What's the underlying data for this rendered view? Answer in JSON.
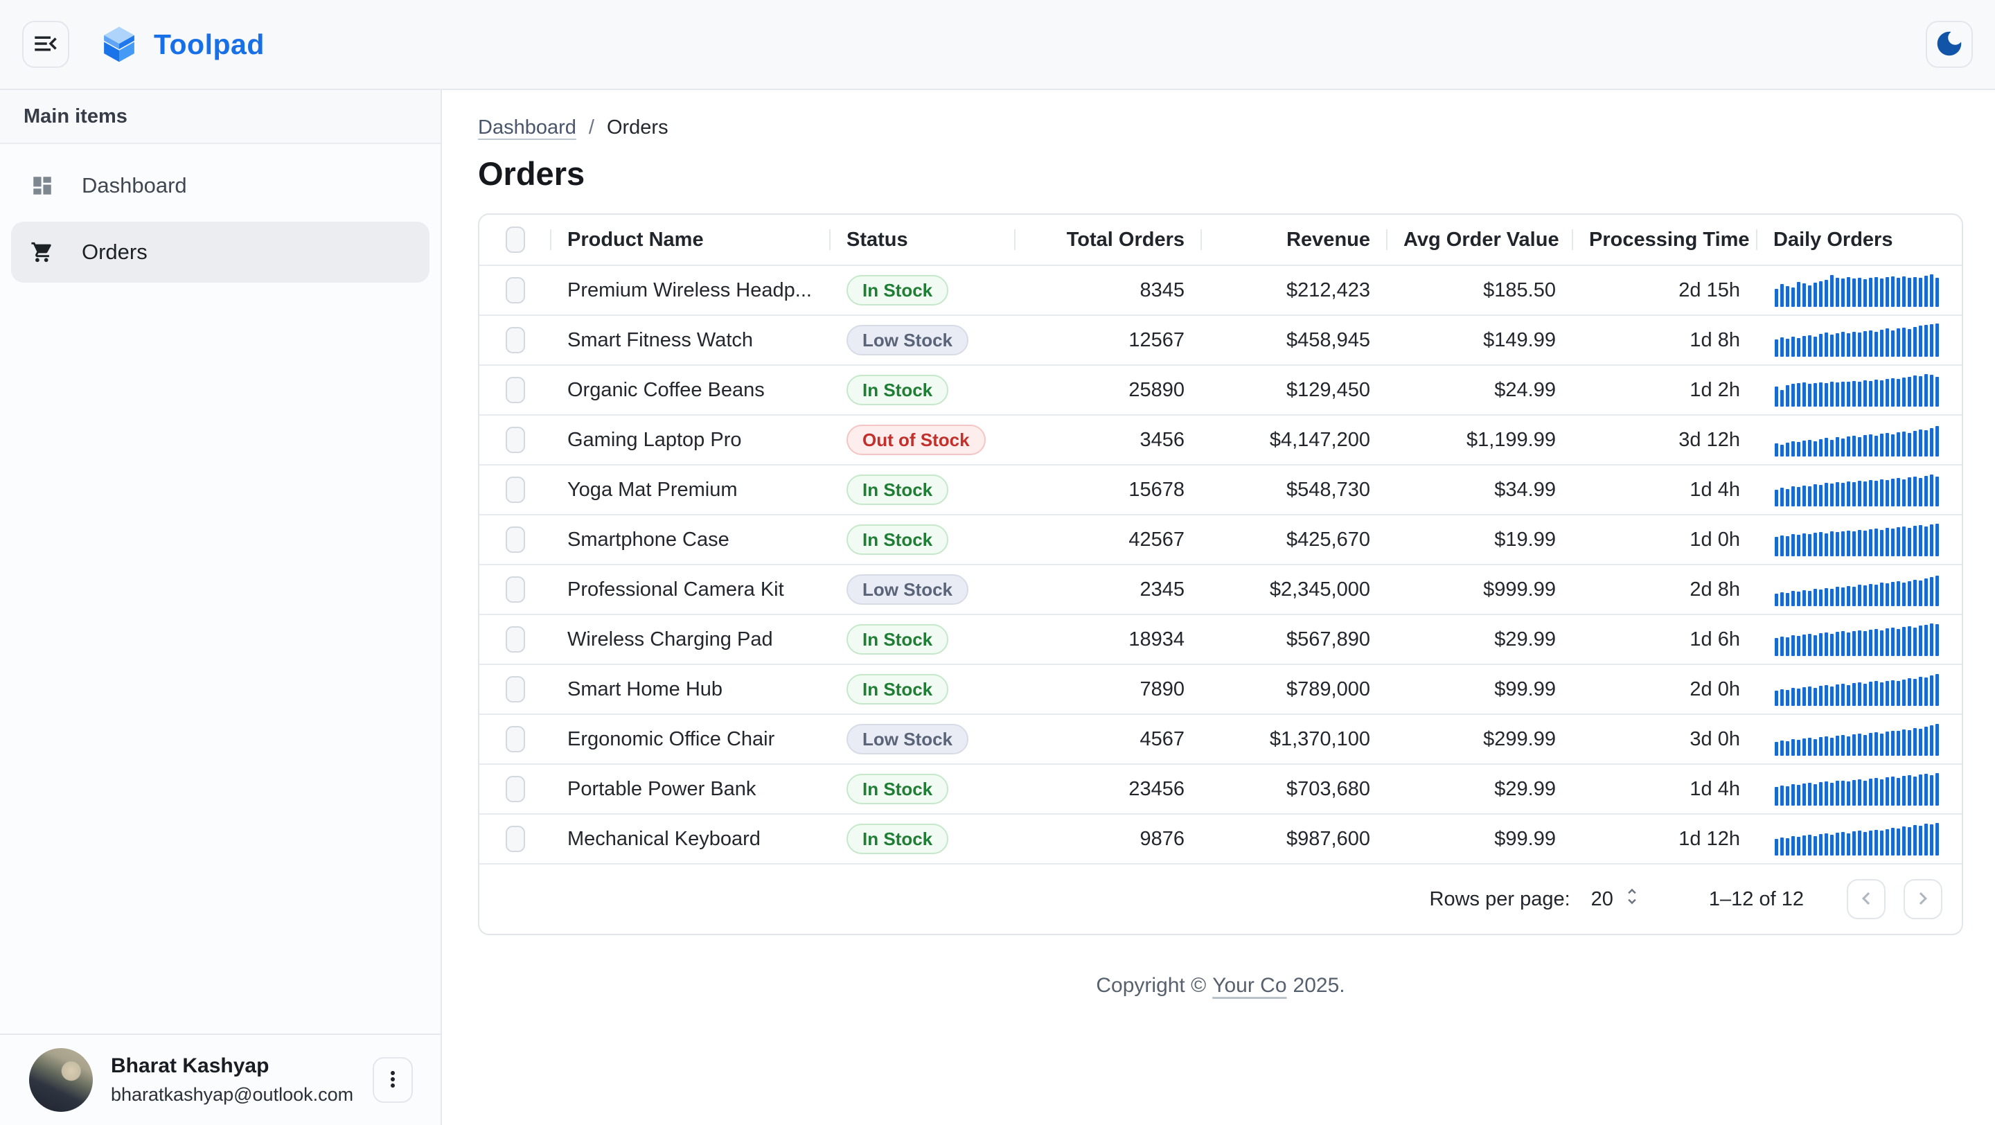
{
  "app_bar": {
    "brand": "Toolpad",
    "brand_color": "#1770E8",
    "menu_icon": "menu-open-icon",
    "theme_toggle_icon": "moon-icon",
    "moon_color": "#1254A8"
  },
  "sidebar": {
    "section_label": "Main items",
    "items": [
      {
        "id": "dashboard",
        "label": "Dashboard",
        "icon": "dashboard-icon",
        "selected": false
      },
      {
        "id": "orders",
        "label": "Orders",
        "icon": "cart-icon",
        "selected": true
      }
    ],
    "user": {
      "name": "Bharat Kashyap",
      "email": "bharatkashyap@outlook.com",
      "menu_icon": "more-vert-icon"
    }
  },
  "breadcrumb": {
    "items": [
      {
        "label": "Dashboard",
        "link": true
      },
      {
        "label": "Orders",
        "link": false
      }
    ],
    "separator": "/"
  },
  "page": {
    "title": "Orders"
  },
  "table": {
    "columns": [
      {
        "key": "checkbox",
        "label": "",
        "align": "center"
      },
      {
        "key": "name",
        "label": "Product Name",
        "align": "left"
      },
      {
        "key": "status",
        "label": "Status",
        "align": "left"
      },
      {
        "key": "total_orders",
        "label": "Total Orders",
        "align": "right"
      },
      {
        "key": "revenue",
        "label": "Revenue",
        "align": "right"
      },
      {
        "key": "avg_order_value",
        "label": "Avg Order Value",
        "align": "right"
      },
      {
        "key": "processing_time",
        "label": "Processing Time",
        "align": "right"
      },
      {
        "key": "daily_orders",
        "label": "Daily Orders",
        "align": "left"
      }
    ],
    "status_styles": {
      "in": {
        "label": "In Stock",
        "text": "#1E7E34",
        "bg": "#F2FBF3",
        "border": "#C5E8CA"
      },
      "low": {
        "label": "Low Stock",
        "text": "#5A6478",
        "bg": "#E9ECF4",
        "border": "#D6DBE7"
      },
      "out": {
        "label": "Out of Stock",
        "text": "#C3302B",
        "bg": "#FDEEED",
        "border": "#F4C5C3"
      }
    },
    "sparkline_color": "#1869D4",
    "rows": [
      {
        "name": "Premium Wireless Headp...",
        "status": "In Stock",
        "status_type": "in",
        "total_orders": "8345",
        "revenue": "$212,423",
        "avg_order_value": "$185.50",
        "processing_time": "2d 15h",
        "daily_orders": [
          55,
          68,
          62,
          58,
          75,
          70,
          64,
          72,
          78,
          82,
          95,
          88,
          85,
          90,
          86,
          88,
          84,
          87,
          90,
          86,
          89,
          92,
          88,
          91,
          87,
          90,
          88,
          93,
          97,
          88
        ]
      },
      {
        "name": "Smart Fitness Watch",
        "status": "Low Stock",
        "status_type": "low",
        "total_orders": "12567",
        "revenue": "$458,945",
        "avg_order_value": "$149.99",
        "processing_time": "1d 8h",
        "daily_orders": [
          52,
          58,
          54,
          60,
          57,
          62,
          65,
          60,
          68,
          72,
          66,
          70,
          74,
          70,
          76,
          73,
          78,
          80,
          76,
          82,
          85,
          80,
          86,
          88,
          84,
          90,
          93,
          96,
          98,
          100
        ]
      },
      {
        "name": "Organic Coffee Beans",
        "status": "In Stock",
        "status_type": "in",
        "total_orders": "25890",
        "revenue": "$129,450",
        "avg_order_value": "$24.99",
        "processing_time": "1d 2h",
        "daily_orders": [
          60,
          50,
          64,
          68,
          70,
          72,
          68,
          70,
          72,
          70,
          74,
          72,
          76,
          74,
          78,
          76,
          80,
          78,
          82,
          80,
          84,
          86,
          84,
          88,
          90,
          94,
          92,
          97,
          95,
          90
        ]
      },
      {
        "name": "Gaming Laptop Pro",
        "status": "Out of Stock",
        "status_type": "out",
        "total_orders": "3456",
        "revenue": "$4,147,200",
        "avg_order_value": "$1,199.99",
        "processing_time": "3d 12h",
        "daily_orders": [
          40,
          36,
          42,
          45,
          44,
          48,
          50,
          46,
          52,
          56,
          50,
          58,
          54,
          60,
          62,
          58,
          64,
          66,
          62,
          68,
          70,
          66,
          72,
          74,
          70,
          78,
          82,
          80,
          86,
          92
        ]
      },
      {
        "name": "Yoga Mat Premium",
        "status": "In Stock",
        "status_type": "in",
        "total_orders": "15678",
        "revenue": "$548,730",
        "avg_order_value": "$34.99",
        "processing_time": "1d 4h",
        "daily_orders": [
          50,
          56,
          52,
          60,
          58,
          62,
          60,
          66,
          64,
          70,
          68,
          72,
          70,
          74,
          72,
          78,
          76,
          80,
          78,
          82,
          80,
          84,
          86,
          82,
          88,
          90,
          86,
          92,
          95,
          90
        ]
      },
      {
        "name": "Smartphone Case",
        "status": "In Stock",
        "status_type": "in",
        "total_orders": "42567",
        "revenue": "$425,670",
        "avg_order_value": "$19.99",
        "processing_time": "1d 0h",
        "daily_orders": [
          58,
          62,
          60,
          66,
          64,
          68,
          66,
          70,
          72,
          68,
          74,
          72,
          76,
          78,
          74,
          80,
          78,
          82,
          84,
          80,
          86,
          84,
          88,
          90,
          86,
          92,
          94,
          90,
          96,
          98
        ]
      },
      {
        "name": "Professional Camera Kit",
        "status": "Low Stock",
        "status_type": "low",
        "total_orders": "2345",
        "revenue": "$2,345,000",
        "avg_order_value": "$999.99",
        "processing_time": "2d 8h",
        "daily_orders": [
          38,
          42,
          40,
          46,
          44,
          48,
          46,
          52,
          50,
          54,
          52,
          58,
          56,
          60,
          58,
          64,
          62,
          66,
          64,
          70,
          68,
          72,
          74,
          70,
          76,
          80,
          78,
          84,
          88,
          92
        ]
      },
      {
        "name": "Wireless Charging Pad",
        "status": "In Stock",
        "status_type": "in",
        "total_orders": "18934",
        "revenue": "$567,890",
        "avg_order_value": "$29.99",
        "processing_time": "1d 6h",
        "daily_orders": [
          54,
          58,
          56,
          62,
          60,
          64,
          66,
          62,
          68,
          70,
          66,
          72,
          74,
          70,
          76,
          78,
          74,
          80,
          82,
          78,
          84,
          86,
          82,
          88,
          90,
          86,
          92,
          94,
          98,
          96
        ]
      },
      {
        "name": "Smart Home Hub",
        "status": "In Stock",
        "status_type": "in",
        "total_orders": "7890",
        "revenue": "$789,000",
        "avg_order_value": "$99.99",
        "processing_time": "2d 0h",
        "daily_orders": [
          45,
          50,
          48,
          54,
          52,
          56,
          58,
          54,
          60,
          62,
          58,
          64,
          66,
          62,
          68,
          70,
          66,
          72,
          74,
          70,
          76,
          78,
          74,
          80,
          84,
          82,
          88,
          86,
          92,
          96
        ]
      },
      {
        "name": "Ergonomic Office Chair",
        "status": "Low Stock",
        "status_type": "low",
        "total_orders": "4567",
        "revenue": "$1,370,100",
        "avg_order_value": "$299.99",
        "processing_time": "3d 0h",
        "daily_orders": [
          42,
          46,
          44,
          50,
          48,
          52,
          54,
          50,
          56,
          58,
          54,
          60,
          62,
          58,
          64,
          66,
          62,
          68,
          70,
          66,
          72,
          76,
          74,
          80,
          78,
          84,
          82,
          88,
          92,
          96
        ]
      },
      {
        "name": "Portable Power Bank",
        "status": "In Stock",
        "status_type": "in",
        "total_orders": "23456",
        "revenue": "$703,680",
        "avg_order_value": "$29.99",
        "processing_time": "1d 4h",
        "daily_orders": [
          56,
          60,
          58,
          64,
          62,
          66,
          68,
          64,
          70,
          72,
          68,
          74,
          76,
          72,
          78,
          80,
          76,
          82,
          84,
          80,
          86,
          88,
          84,
          90,
          92,
          88,
          94,
          96,
          92,
          98
        ]
      },
      {
        "name": "Mechanical Keyboard",
        "status": "In Stock",
        "status_type": "in",
        "total_orders": "9876",
        "revenue": "$987,600",
        "avg_order_value": "$99.99",
        "processing_time": "1d 12h",
        "daily_orders": [
          50,
          54,
          52,
          58,
          56,
          60,
          62,
          58,
          64,
          66,
          62,
          68,
          70,
          66,
          72,
          74,
          70,
          76,
          78,
          74,
          80,
          84,
          82,
          88,
          86,
          92,
          90,
          96,
          94,
          98
        ]
      }
    ]
  },
  "pagination": {
    "rows_per_page_label": "Rows per page:",
    "rows_per_page": "20",
    "range": "1–12 of 12"
  },
  "footer": {
    "prefix": "Copyright ©",
    "link": "Your Co",
    "suffix": "2025."
  }
}
